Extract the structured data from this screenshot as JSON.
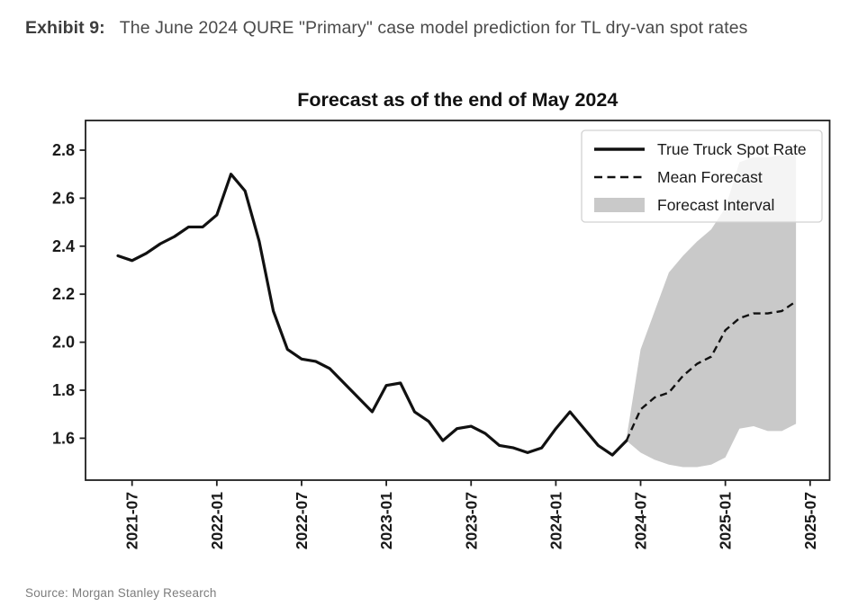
{
  "header": {
    "exhibit_label": "Exhibit 9:",
    "title_rest": "The June 2024 QURE \"Primary\" case model prediction for TL dry-van spot rates"
  },
  "source": "Source: Morgan Stanley Research",
  "chart_data": {
    "type": "line",
    "title": "Forecast as of the end of May 2024",
    "xlabel": "",
    "ylabel": "",
    "grid": false,
    "x_tick_labels": [
      "2021-07",
      "2022-01",
      "2022-07",
      "2023-01",
      "2023-07",
      "2024-01",
      "2024-07",
      "2025-01",
      "2025-07"
    ],
    "y_ticks": [
      1.6,
      1.8,
      2.0,
      2.2,
      2.4,
      2.6,
      2.8
    ],
    "ylim": [
      1.42,
      2.92
    ],
    "xlim": [
      "2021-03",
      "2025-08"
    ],
    "legend": {
      "position": "upper right",
      "entries": [
        "True Truck Spot Rate",
        "Mean Forecast",
        "Forecast Interval"
      ]
    },
    "colors": {
      "line": "#111111",
      "band": "#c9c9c9",
      "axis": "#1f1f1f",
      "legend_border": "#d2d2d2"
    },
    "series": [
      {
        "name": "True Truck Spot Rate",
        "style": "solid",
        "months": [
          "2021-06",
          "2021-07",
          "2021-08",
          "2021-09",
          "2021-10",
          "2021-11",
          "2021-12",
          "2022-01",
          "2022-02",
          "2022-03",
          "2022-04",
          "2022-05",
          "2022-06",
          "2022-07",
          "2022-08",
          "2022-09",
          "2022-10",
          "2022-11",
          "2022-12",
          "2023-01",
          "2023-02",
          "2023-03",
          "2023-04",
          "2023-05",
          "2023-06",
          "2023-07",
          "2023-08",
          "2023-09",
          "2023-10",
          "2023-11",
          "2023-12",
          "2024-01",
          "2024-02",
          "2024-03",
          "2024-04",
          "2024-05",
          "2024-06"
        ],
        "values": [
          2.36,
          2.34,
          2.37,
          2.41,
          2.44,
          2.48,
          2.48,
          2.53,
          2.7,
          2.63,
          2.42,
          2.13,
          1.97,
          1.93,
          1.92,
          1.89,
          1.83,
          1.77,
          1.71,
          1.82,
          1.83,
          1.71,
          1.67,
          1.59,
          1.64,
          1.65,
          1.62,
          1.57,
          1.56,
          1.54,
          1.56,
          1.64,
          1.71,
          1.64,
          1.57,
          1.53,
          1.59
        ]
      },
      {
        "name": "Mean Forecast",
        "style": "dashed",
        "months": [
          "2024-06",
          "2024-07",
          "2024-08",
          "2024-09",
          "2024-10",
          "2024-11",
          "2024-12",
          "2025-01",
          "2025-02",
          "2025-03",
          "2025-04",
          "2025-05",
          "2025-06"
        ],
        "values": [
          1.59,
          1.72,
          1.77,
          1.79,
          1.86,
          1.91,
          1.94,
          2.05,
          2.1,
          2.12,
          2.12,
          2.13,
          2.17
        ]
      },
      {
        "name": "Forecast Interval",
        "style": "band",
        "months": [
          "2024-06",
          "2024-07",
          "2024-08",
          "2024-09",
          "2024-10",
          "2024-11",
          "2024-12",
          "2025-01",
          "2025-02",
          "2025-03",
          "2025-04",
          "2025-05",
          "2025-06"
        ],
        "upper": [
          1.6,
          1.97,
          2.13,
          2.29,
          2.36,
          2.42,
          2.47,
          2.56,
          2.75,
          2.77,
          2.77,
          2.78,
          2.78
        ],
        "lower": [
          1.59,
          1.54,
          1.51,
          1.49,
          1.48,
          1.48,
          1.49,
          1.52,
          1.64,
          1.65,
          1.63,
          1.63,
          1.66
        ]
      }
    ]
  }
}
